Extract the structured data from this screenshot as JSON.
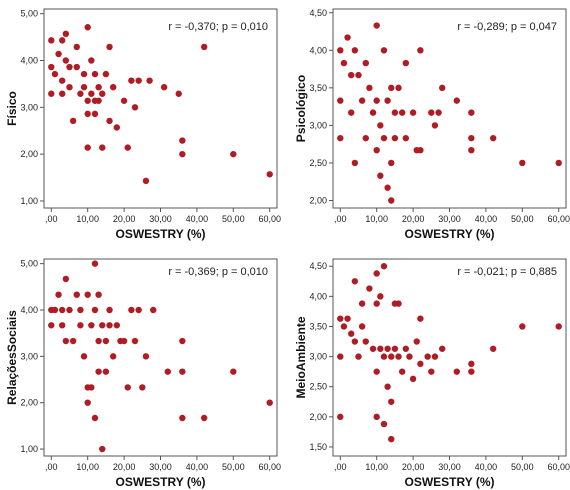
{
  "chart_data": [
    {
      "type": "scatter",
      "xlabel": "OSWESTRY (%)",
      "ylabel": "Físico",
      "annotation": "r = -0,370; p = 0,010",
      "x_ticks": [
        ",00",
        "10,00",
        "20,00",
        "30,00",
        "40,00",
        "50,00",
        "60,00"
      ],
      "y_ticks": [
        "1,00",
        "2,00",
        "3,00",
        "4,00",
        "5,00"
      ],
      "xlim": [
        -2,
        62
      ],
      "ylim": [
        0.85,
        5.1
      ],
      "point_color": "#b01c24",
      "points": [
        [
          0,
          4.43
        ],
        [
          0,
          3.86
        ],
        [
          0,
          3.29
        ],
        [
          1,
          3.71
        ],
        [
          2,
          4.14
        ],
        [
          3,
          4.43
        ],
        [
          3,
          3.57
        ],
        [
          3,
          3.29
        ],
        [
          4,
          4.0
        ],
        [
          4,
          4.57
        ],
        [
          5,
          3.86
        ],
        [
          5,
          3.43
        ],
        [
          6,
          2.71
        ],
        [
          7,
          3.86
        ],
        [
          7,
          4.29
        ],
        [
          8,
          3.29
        ],
        [
          9,
          3.43
        ],
        [
          9,
          3.71
        ],
        [
          10,
          4.71
        ],
        [
          10,
          3.14
        ],
        [
          10,
          2.86
        ],
        [
          10,
          2.14
        ],
        [
          11,
          4.0
        ],
        [
          11,
          3.29
        ],
        [
          12,
          3.71
        ],
        [
          12,
          3.14
        ],
        [
          12,
          2.86
        ],
        [
          13,
          3.43
        ],
        [
          13,
          3.14
        ],
        [
          14,
          3.29
        ],
        [
          14,
          2.14
        ],
        [
          15,
          3.71
        ],
        [
          16,
          4.29
        ],
        [
          16,
          2.71
        ],
        [
          17,
          3.43
        ],
        [
          18,
          2.57
        ],
        [
          20,
          3.14
        ],
        [
          21,
          2.14
        ],
        [
          22,
          3.57
        ],
        [
          23,
          3.0
        ],
        [
          24,
          3.57
        ],
        [
          26,
          1.43
        ],
        [
          27,
          3.57
        ],
        [
          31,
          3.43
        ],
        [
          35,
          3.29
        ],
        [
          36,
          2.29
        ],
        [
          36,
          2.0
        ],
        [
          42,
          4.29
        ],
        [
          50,
          2.0
        ],
        [
          60,
          1.57
        ]
      ]
    },
    {
      "type": "scatter",
      "xlabel": "OSWESTRY (%)",
      "ylabel": "Psicológico",
      "annotation": "r = -0,289; p = 0,047",
      "x_ticks": [
        ",00",
        "10,00",
        "20,00",
        "30,00",
        "40,00",
        "50,00",
        "60,00"
      ],
      "y_ticks": [
        "2,00",
        "2,50",
        "3,00",
        "3,50",
        "4,00",
        "4,50"
      ],
      "xlim": [
        -2,
        62
      ],
      "ylim": [
        1.9,
        4.55
      ],
      "point_color": "#b01c24",
      "points": [
        [
          0,
          4.0
        ],
        [
          0,
          3.33
        ],
        [
          0,
          2.83
        ],
        [
          1,
          3.83
        ],
        [
          2,
          4.17
        ],
        [
          3,
          3.67
        ],
        [
          3,
          3.17
        ],
        [
          4,
          4.0
        ],
        [
          4,
          2.5
        ],
        [
          5,
          3.67
        ],
        [
          6,
          3.33
        ],
        [
          7,
          3.83
        ],
        [
          7,
          2.83
        ],
        [
          8,
          3.5
        ],
        [
          9,
          3.17
        ],
        [
          10,
          4.33
        ],
        [
          10,
          3.33
        ],
        [
          10,
          2.67
        ],
        [
          11,
          2.33
        ],
        [
          11,
          3.0
        ],
        [
          12,
          4.0
        ],
        [
          12,
          2.83
        ],
        [
          13,
          3.33
        ],
        [
          13,
          2.17
        ],
        [
          14,
          3.5
        ],
        [
          14,
          2.5
        ],
        [
          14,
          2.0
        ],
        [
          15,
          3.17
        ],
        [
          15,
          2.83
        ],
        [
          16,
          3.5
        ],
        [
          17,
          3.17
        ],
        [
          18,
          3.83
        ],
        [
          18,
          2.83
        ],
        [
          20,
          3.17
        ],
        [
          21,
          2.67
        ],
        [
          22,
          4.0
        ],
        [
          22,
          2.67
        ],
        [
          25,
          3.17
        ],
        [
          26,
          3.0
        ],
        [
          27,
          3.17
        ],
        [
          28,
          3.5
        ],
        [
          32,
          3.33
        ],
        [
          36,
          2.83
        ],
        [
          36,
          2.67
        ],
        [
          36,
          3.17
        ],
        [
          42,
          2.83
        ],
        [
          50,
          2.5
        ],
        [
          60,
          2.5
        ]
      ]
    },
    {
      "type": "scatter",
      "xlabel": "OSWESTRY (%)",
      "ylabel": "RelaçõesSociais",
      "annotation": "r = -0,369; p = 0,010",
      "x_ticks": [
        ",00",
        "10,00",
        "20,00",
        "30,00",
        "40,00",
        "50,00",
        "60,00"
      ],
      "y_ticks": [
        "1,00",
        "2,00",
        "3,00",
        "4,00",
        "5,00"
      ],
      "xlim": [
        -2,
        62
      ],
      "ylim": [
        0.85,
        5.1
      ],
      "point_color": "#b01c24",
      "points": [
        [
          0,
          4.0
        ],
        [
          0,
          3.67
        ],
        [
          1,
          4.0
        ],
        [
          2,
          4.33
        ],
        [
          3,
          4.0
        ],
        [
          3,
          3.67
        ],
        [
          4,
          4.67
        ],
        [
          4,
          3.33
        ],
        [
          5,
          4.0
        ],
        [
          6,
          3.33
        ],
        [
          7,
          4.33
        ],
        [
          8,
          4.0
        ],
        [
          8,
          3.67
        ],
        [
          9,
          3.0
        ],
        [
          10,
          4.33
        ],
        [
          10,
          2.33
        ],
        [
          10,
          2.0
        ],
        [
          11,
          3.67
        ],
        [
          11,
          2.33
        ],
        [
          12,
          5.0
        ],
        [
          12,
          4.0
        ],
        [
          12,
          1.67
        ],
        [
          13,
          3.33
        ],
        [
          13,
          4.33
        ],
        [
          13,
          2.67
        ],
        [
          14,
          1.0
        ],
        [
          14,
          3.67
        ],
        [
          15,
          3.33
        ],
        [
          15,
          2.67
        ],
        [
          16,
          4.0
        ],
        [
          16,
          3.67
        ],
        [
          17,
          3.0
        ],
        [
          18,
          3.67
        ],
        [
          19,
          3.33
        ],
        [
          20,
          3.33
        ],
        [
          21,
          2.33
        ],
        [
          22,
          4.0
        ],
        [
          23,
          3.33
        ],
        [
          24,
          4.0
        ],
        [
          25,
          2.33
        ],
        [
          26,
          3.0
        ],
        [
          28,
          4.0
        ],
        [
          32,
          2.67
        ],
        [
          36,
          3.33
        ],
        [
          36,
          2.67
        ],
        [
          36,
          1.67
        ],
        [
          42,
          1.67
        ],
        [
          50,
          2.67
        ],
        [
          60,
          2.0
        ]
      ]
    },
    {
      "type": "scatter",
      "xlabel": "OSWESTRY (%)",
      "ylabel": "MeioAmbiente",
      "annotation": "r = -0,021; p = 0,885",
      "x_ticks": [
        ",00",
        "10,00",
        "20,00",
        "30,00",
        "40,00",
        "50,00",
        "60,00"
      ],
      "y_ticks": [
        "1,50",
        "2,00",
        "2,50",
        "3,00",
        "3,50",
        "4,00",
        "4,50"
      ],
      "xlim": [
        -2,
        62
      ],
      "ylim": [
        1.35,
        4.62
      ],
      "point_color": "#b01c24",
      "points": [
        [
          0,
          3.63
        ],
        [
          0,
          3.0
        ],
        [
          0,
          2.0
        ],
        [
          1,
          3.5
        ],
        [
          2,
          3.63
        ],
        [
          3,
          3.38
        ],
        [
          4,
          4.25
        ],
        [
          4,
          3.25
        ],
        [
          5,
          3.0
        ],
        [
          6,
          3.88
        ],
        [
          6,
          3.5
        ],
        [
          7,
          3.25
        ],
        [
          8,
          4.13
        ],
        [
          9,
          3.13
        ],
        [
          10,
          4.38
        ],
        [
          10,
          3.88
        ],
        [
          10,
          2.75
        ],
        [
          10,
          2.0
        ],
        [
          11,
          4.0
        ],
        [
          11,
          3.13
        ],
        [
          12,
          4.5
        ],
        [
          12,
          3.0
        ],
        [
          12,
          1.88
        ],
        [
          13,
          3.13
        ],
        [
          13,
          2.5
        ],
        [
          14,
          3.0
        ],
        [
          14,
          2.25
        ],
        [
          14,
          1.63
        ],
        [
          15,
          3.88
        ],
        [
          15,
          3.13
        ],
        [
          16,
          3.88
        ],
        [
          16,
          3.0
        ],
        [
          17,
          2.75
        ],
        [
          18,
          3.13
        ],
        [
          19,
          3.0
        ],
        [
          20,
          2.63
        ],
        [
          21,
          3.25
        ],
        [
          22,
          3.63
        ],
        [
          22,
          2.88
        ],
        [
          24,
          3.0
        ],
        [
          25,
          2.75
        ],
        [
          26,
          3.0
        ],
        [
          28,
          3.13
        ],
        [
          32,
          2.75
        ],
        [
          36,
          2.88
        ],
        [
          36,
          2.75
        ],
        [
          42,
          3.13
        ],
        [
          50,
          3.5
        ],
        [
          60,
          3.5
        ]
      ]
    }
  ]
}
